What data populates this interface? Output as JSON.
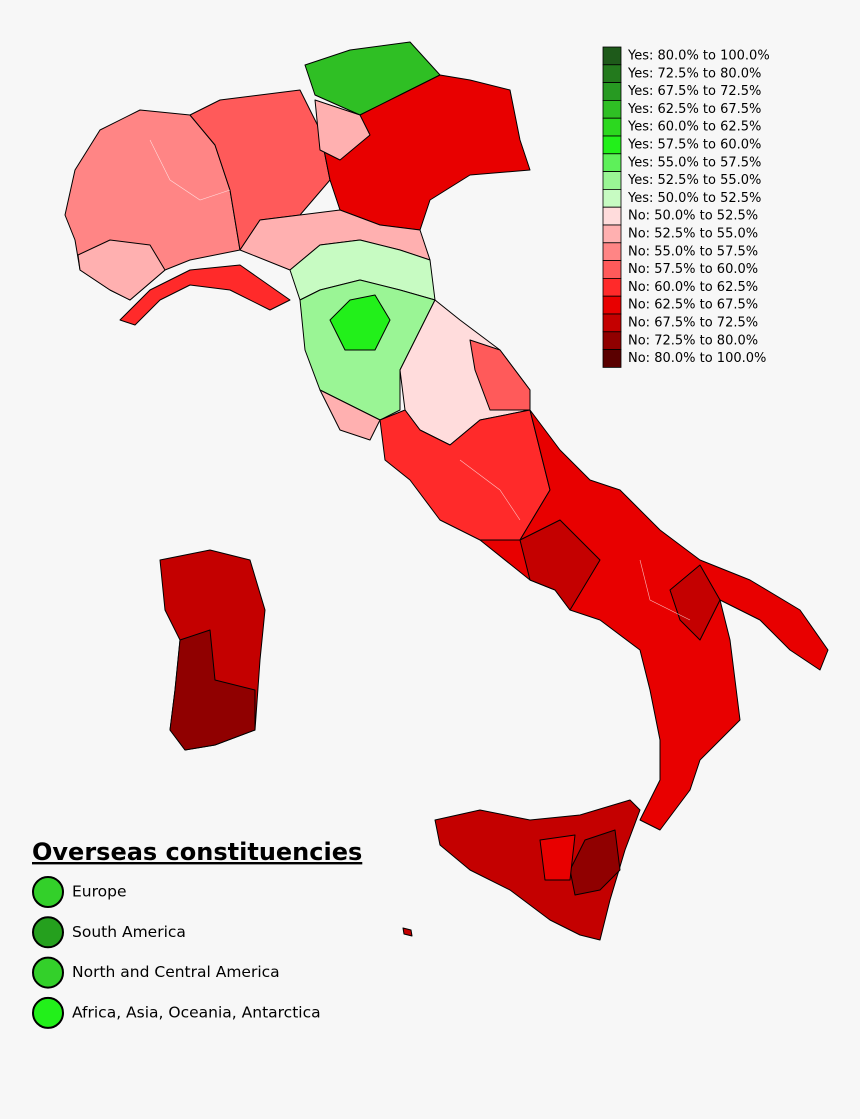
{
  "legend": [
    {
      "label": "Yes: 80.0% to 100.0%",
      "color": "#1e5a1a"
    },
    {
      "label": "Yes: 72.5% to 80.0%",
      "color": "#237a1d"
    },
    {
      "label": "Yes: 67.5% to 72.5%",
      "color": "#279a22"
    },
    {
      "label": "Yes: 62.5% to 67.5%",
      "color": "#2fbf24"
    },
    {
      "label": "Yes: 60.0% to 62.5%",
      "color": "#2cd81f"
    },
    {
      "label": "Yes: 57.5% to 60.0%",
      "color": "#22f01a"
    },
    {
      "label": "Yes: 55.0% to 57.5%",
      "color": "#5ef05a"
    },
    {
      "label": "Yes: 52.5% to 55.0%",
      "color": "#9af595"
    },
    {
      "label": "Yes: 50.0% to 52.5%",
      "color": "#c7fbc2"
    },
    {
      "label": "No: 50.0% to 52.5%",
      "color": "#ffdcdc"
    },
    {
      "label": "No: 52.5% to 55.0%",
      "color": "#ffb0b0"
    },
    {
      "label": "No: 55.0% to 57.5%",
      "color": "#ff8585"
    },
    {
      "label": "No: 57.5% to 60.0%",
      "color": "#ff5a5a"
    },
    {
      "label": "No: 60.0% to 62.5%",
      "color": "#ff2a2a"
    },
    {
      "label": "No: 62.5% to 67.5%",
      "color": "#e80000"
    },
    {
      "label": "No: 67.5% to 72.5%",
      "color": "#c40000"
    },
    {
      "label": "No: 72.5% to 80.0%",
      "color": "#900000"
    },
    {
      "label": "No: 80.0% to 100.0%",
      "color": "#5a0000"
    }
  ],
  "overseas": {
    "title": "Overseas constituencies",
    "items": [
      {
        "label": "Europe",
        "color": "#33d02a"
      },
      {
        "label": "South America",
        "color": "#25a01e"
      },
      {
        "label": "North and Central America",
        "color": "#33d02a"
      },
      {
        "label": "Africa, Asia, Oceania, Antarctica",
        "color": "#22f01a"
      }
    ]
  }
}
